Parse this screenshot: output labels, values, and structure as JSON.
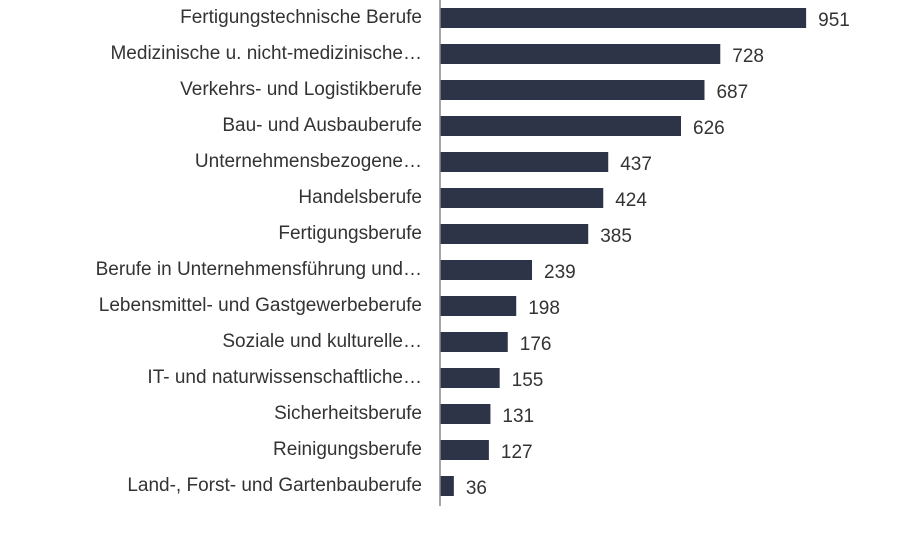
{
  "chart_data": {
    "type": "bar",
    "orientation": "horizontal",
    "color": "#2e3448",
    "categories": [
      "Fertigungstechnische Berufe",
      "Medizinische u. nicht-medizinische…",
      "Verkehrs- und Logistikberufe",
      "Bau- und Ausbauberufe",
      "Unternehmensbezogene…",
      "Handelsberufe",
      "Fertigungsberufe",
      "Berufe in Unternehmensführung und…",
      "Lebensmittel- und Gastgewerbeberufe",
      "Soziale und kulturelle…",
      "IT- und naturwissenschaftliche…",
      "Sicherheitsberufe",
      "Reinigungsberufe",
      "Land-, Forst- und Gartenbauberufe"
    ],
    "values": [
      951,
      728,
      687,
      626,
      437,
      424,
      385,
      239,
      198,
      176,
      155,
      131,
      127,
      36
    ]
  }
}
